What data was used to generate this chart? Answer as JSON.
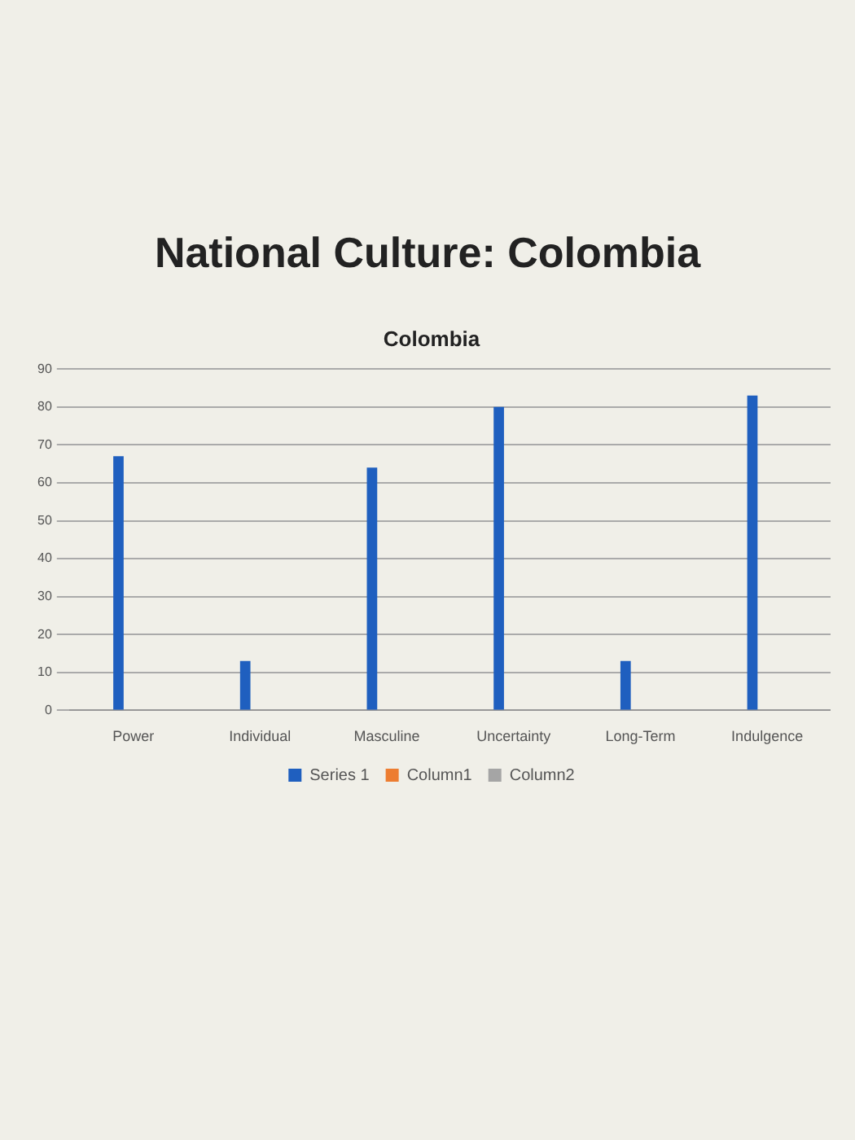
{
  "chart_data": {
    "type": "bar",
    "title": "National Culture: Colombia",
    "subtitle": "Colombia",
    "categories": [
      "Power",
      "Individual",
      "Masculine",
      "Uncertainty",
      "Long-Term",
      "Indulgence"
    ],
    "series": [
      {
        "name": "Series 1",
        "color": "#1f5fbf",
        "values": [
          67,
          13,
          64,
          80,
          13,
          83
        ]
      },
      {
        "name": "Column1",
        "color": "#ed7d31",
        "values": [
          null,
          null,
          null,
          null,
          null,
          null
        ]
      },
      {
        "name": "Column2",
        "color": "#a5a5a5",
        "values": [
          null,
          null,
          null,
          null,
          null,
          null
        ]
      }
    ],
    "ylim": [
      0,
      90
    ],
    "yticks": [
      0,
      10,
      20,
      30,
      40,
      50,
      60,
      70,
      80,
      90
    ],
    "grid": "y",
    "legend": "bottom"
  }
}
